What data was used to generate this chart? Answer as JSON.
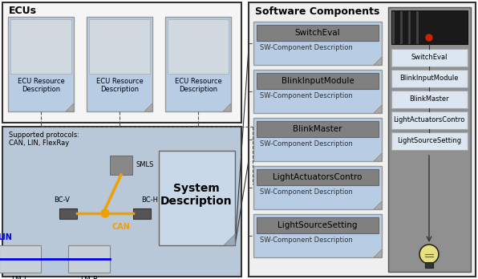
{
  "bg_color": "#ffffff",
  "ecu_section_title": "ECUs",
  "sw_section_title": "Software Components",
  "system_desc_title": "System\nDescription",
  "protocols_text": "Supported protocols:\nCAN, LIN, FlexRay",
  "ecu_labels": [
    "ECU Resource\nDescription",
    "ECU Resource\nDescription",
    "ECU Resource\nDescription"
  ],
  "sw_components": [
    "SwitchEval",
    "BlinkInputModule",
    "BlinkMaster",
    "LightActuatorsContro",
    "LightSourceSetting"
  ],
  "sw_desc_label": "SW-Component Description",
  "right_panel_labels": [
    "SwitchEval",
    "BlinkInputModule",
    "BlinkMaster",
    "LightActuatorsContro",
    "LightSourceSetting"
  ],
  "orange_color": "#f0a000",
  "blue_color": "#0000ee",
  "ecu_bg": "#f5f5f5",
  "net_bg": "#b8c8d8",
  "sw_bg": "#f0f0f0",
  "rp_bg": "#909090",
  "comp_bg": "#b8cce4",
  "comp_inner_bg": "#808080",
  "rp_comp_bg": "#dce6f1",
  "sys_desc_bg": "#c8d8e8",
  "chip_color": "#555555",
  "fold_color": "#aaaaaa",
  "dashed_color": "#555555",
  "border_color": "#333333"
}
